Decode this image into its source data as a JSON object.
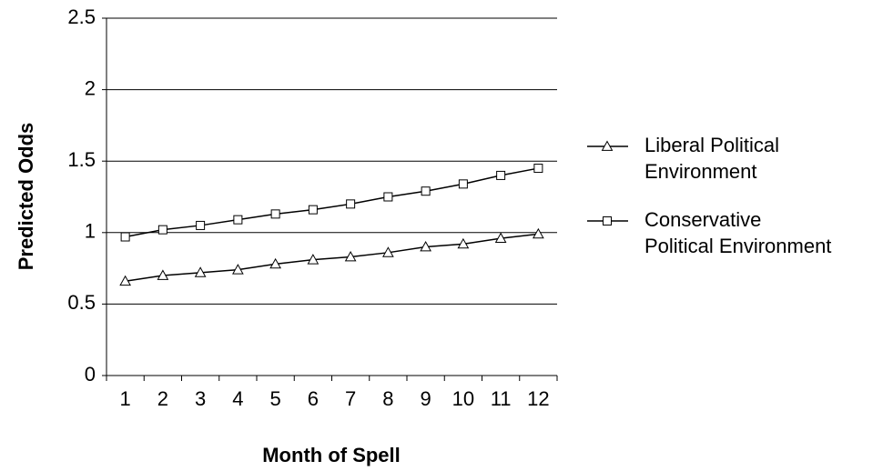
{
  "chart_data": {
    "type": "line",
    "x_label": "Month of Spell",
    "y_label": "Predicted Odds",
    "categories": [
      1,
      2,
      3,
      4,
      5,
      6,
      7,
      8,
      9,
      10,
      11,
      12
    ],
    "series": [
      {
        "name": "Liberal Political Environment",
        "color": "#000000",
        "marker": "triangle",
        "values": [
          0.66,
          0.7,
          0.72,
          0.74,
          0.78,
          0.81,
          0.83,
          0.86,
          0.9,
          0.92,
          0.96,
          0.99
        ]
      },
      {
        "name": "Conservative Political Environment",
        "color": "#000000",
        "marker": "square",
        "values": [
          0.97,
          1.02,
          1.05,
          1.09,
          1.13,
          1.16,
          1.2,
          1.25,
          1.29,
          1.34,
          1.4,
          1.45
        ]
      }
    ],
    "ylim": [
      0,
      2.5
    ],
    "yticks": [
      0,
      0.5,
      1,
      1.5,
      2,
      2.5
    ],
    "grid": true,
    "legend": "right"
  }
}
